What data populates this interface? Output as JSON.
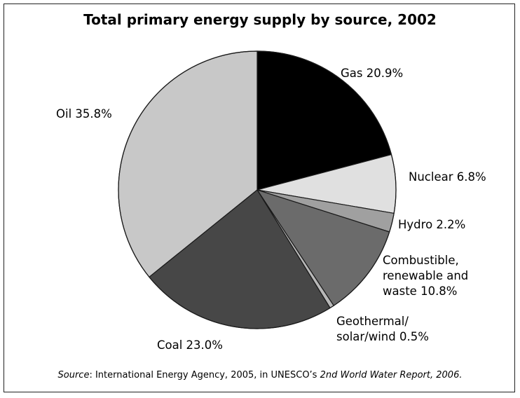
{
  "chart_data": {
    "type": "pie",
    "title": "Total primary energy supply by source, 2002",
    "slices": [
      {
        "label": [
          "Gas 20.9%"
        ],
        "value": 20.9,
        "color": "#000000"
      },
      {
        "label": [
          "Nuclear 6.8%"
        ],
        "value": 6.8,
        "color": "#e0e0e0"
      },
      {
        "label": [
          "Hydro 2.2%"
        ],
        "value": 2.2,
        "color": "#a0a0a0"
      },
      {
        "label": [
          "Combustible,",
          "renewable and",
          "waste 10.8%"
        ],
        "value": 10.8,
        "color": "#6b6b6b"
      },
      {
        "label": [
          "Geothermal/",
          "solar/wind 0.5%"
        ],
        "value": 0.5,
        "color": "#b8b8b8"
      },
      {
        "label": [
          "Coal 23.0%"
        ],
        "value": 23.0,
        "color": "#474747"
      },
      {
        "label": [
          "Oil 35.8%"
        ],
        "value": 35.8,
        "color": "#c8c8c8"
      }
    ],
    "start": "12 o'clock",
    "direction": "clockwise"
  },
  "source": {
    "label": "Source",
    "text_a": ": International Energy Agency, 2005, in UNESCO’s ",
    "report": "2nd World Water Report, 2006."
  }
}
